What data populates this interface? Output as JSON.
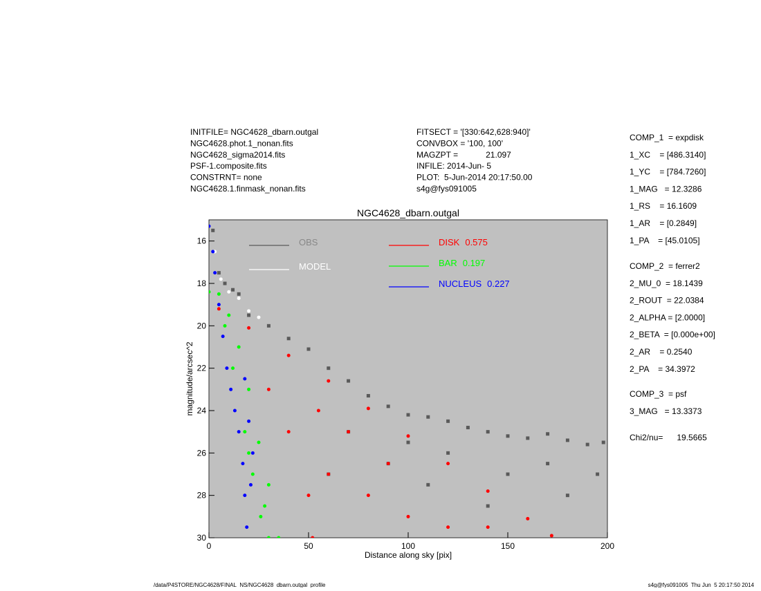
{
  "header": {
    "left": [
      "INITFILE= NGC4628_dbarn.outgal",
      "NGC4628.phot.1_nonan.fits",
      "NGC4628_sigma2014.fits",
      "PSF-1.composite.fits",
      "CONSTRNT= none",
      "NGC4628.1.finmask_nonan.fits"
    ],
    "middle": [
      "FITSECT = '[330:642,628:940]'",
      "CONVBOX = '100, 100'",
      "MAGZPT =            21.097",
      "INFILE: 2014-Jun- 5",
      "PLOT:  5-Jun-2014 20:17:50.00",
      "s4g@fys091005"
    ]
  },
  "parameters": [
    [
      "COMP_1  = expdisk",
      "1_XC    = [486.3140]",
      "1_YC    = [784.7260]",
      "1_MAG   = 12.3286",
      "1_RS    = 16.1609",
      "1_AR    = [0.2849]",
      "1_PA    = [45.0105]"
    ],
    [
      "COMP_2  = ferrer2",
      "2_MU_0  = 18.1439",
      "2_ROUT  = 22.0384",
      "2_ALPHA = [2.0000]",
      "2_BETA  = [0.000e+00]",
      "2_AR    = 0.2540",
      "2_PA    = 34.3972"
    ],
    [
      "COMP_3  = psf",
      "3_MAG   = 13.3373"
    ],
    [
      "Chi2/nu=      19.5665"
    ]
  ],
  "footer": {
    "left": "/data/P4STORE/NGC4628/FINAL_NS/NGC4628_dbarn.outgal_profile",
    "right": "s4g@fys091005  Thu Jun  5 20:17:50 2014"
  },
  "chart_data": {
    "type": "scatter",
    "title": "NGC4628_dbarn.outgal",
    "x_label": "Distance along sky [pix]",
    "y_label": "magnitude/arcsec^2",
    "xlim": [
      0,
      200
    ],
    "ylim": [
      15,
      30
    ],
    "y_inverted": true,
    "xticks": [
      0,
      50,
      100,
      150,
      200
    ],
    "yticks": [
      16,
      18,
      20,
      22,
      24,
      26,
      28,
      30
    ],
    "background": "#c0c0c0",
    "series": [
      {
        "name": "OBS",
        "color": "#5a5a5a",
        "x": [
          2,
          5,
          8,
          12,
          15,
          20,
          30,
          40,
          50,
          60,
          70,
          80,
          90,
          100,
          110,
          120,
          130,
          140,
          150,
          160,
          170,
          180,
          190,
          198,
          100,
          120,
          150,
          180,
          140,
          70,
          60,
          90,
          110,
          170,
          195
        ],
        "values": [
          15.5,
          17.5,
          18,
          18.3,
          18.5,
          19.5,
          20,
          20.6,
          21.1,
          22,
          22.6,
          23.3,
          23.8,
          24.2,
          24.3,
          24.5,
          24.8,
          25,
          25.2,
          25.3,
          25.1,
          25.4,
          25.6,
          25.5,
          25.5,
          26,
          27,
          28,
          28.5,
          25,
          27,
          26.5,
          27.5,
          26.5,
          27
        ]
      },
      {
        "name": "MODEL",
        "color": "#ffffff",
        "x": [
          3,
          6,
          10,
          15,
          20,
          25
        ],
        "values": [
          16.5,
          17.8,
          18.4,
          18.7,
          19.3,
          19.6
        ]
      },
      {
        "name": "DISK",
        "fraction": 0.575,
        "color": "#ff0000",
        "x": [
          5,
          20,
          40,
          60,
          80,
          100,
          120,
          140,
          160,
          172,
          30,
          40,
          50,
          52,
          60,
          80,
          100,
          120,
          70,
          90,
          55,
          140
        ],
        "values": [
          19.2,
          20.1,
          21.4,
          22.6,
          23.9,
          25.2,
          26.5,
          27.8,
          29.1,
          29.9,
          23,
          25,
          28,
          30,
          27,
          28,
          29,
          29.5,
          25,
          26.5,
          24,
          29.5
        ]
      },
      {
        "name": "BAR",
        "fraction": 0.197,
        "color": "#00ff00",
        "x": [
          0,
          5,
          10,
          15,
          20,
          25,
          30,
          35,
          8,
          12,
          18,
          22,
          26,
          30,
          28,
          20
        ],
        "values": [
          18.4,
          18.5,
          19.5,
          21,
          23,
          25.5,
          27.5,
          30,
          20,
          22,
          25,
          27,
          29,
          30,
          28.5,
          26
        ]
      },
      {
        "name": "NUCLEUS",
        "fraction": 0.227,
        "color": "#0000ff",
        "x": [
          0,
          2,
          3,
          5,
          7,
          9,
          11,
          13,
          15,
          17,
          18,
          19,
          20,
          22,
          21,
          18
        ],
        "values": [
          15.3,
          16.5,
          17.5,
          19,
          20.5,
          22,
          23,
          24,
          25,
          26.5,
          28,
          29.5,
          24.5,
          26,
          27.5,
          22.5
        ]
      }
    ]
  }
}
